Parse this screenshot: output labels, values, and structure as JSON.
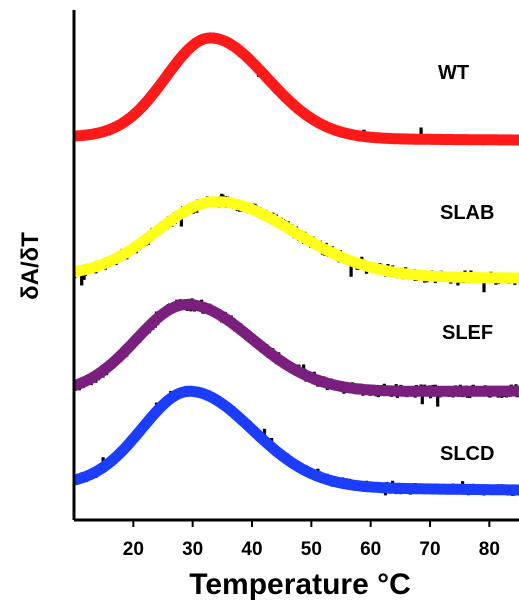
{
  "chart_data": {
    "type": "line",
    "title": "",
    "xlabel": "Temperature °C",
    "ylabel": "δA/δT",
    "xlim": [
      10,
      85
    ],
    "x_ticks": [
      20,
      30,
      40,
      50,
      60,
      70,
      80
    ],
    "grid": false,
    "legend": "none",
    "series": [
      {
        "name": "WT",
        "color": "#ff1a1a",
        "data_color": "#000000",
        "fit": {
          "peak_x": 33,
          "amplitude": 1.0,
          "width_left": 7.5,
          "width_right": 9.5,
          "baseline_start": 0.03,
          "baseline_end": 0.0
        },
        "noise": 0.04
      },
      {
        "name": "SLAB",
        "color": "#ffff1a",
        "data_color": "#000000",
        "fit": {
          "peak_x": 34,
          "amplitude": 0.75,
          "width_left": 10,
          "width_right": 13,
          "baseline_start": 0.02,
          "baseline_end": 0.0
        },
        "noise": 0.06
      },
      {
        "name": "SLEF",
        "color": "#7b1f7f",
        "data_color": "#000000",
        "fit": {
          "peak_x": 29,
          "amplitude": 0.88,
          "width_left": 8.5,
          "width_right": 11,
          "baseline_start": 0.02,
          "baseline_end": 0.04
        },
        "noise": 0.06
      },
      {
        "name": "SLCD",
        "color": "#1a3dff",
        "data_color": "#000000",
        "fit": {
          "peak_x": 29.5,
          "amplitude": 0.95,
          "width_left": 8.0,
          "width_right": 10.5,
          "baseline_start": 0.03,
          "baseline_end": -0.02
        },
        "noise": 0.05
      }
    ]
  }
}
